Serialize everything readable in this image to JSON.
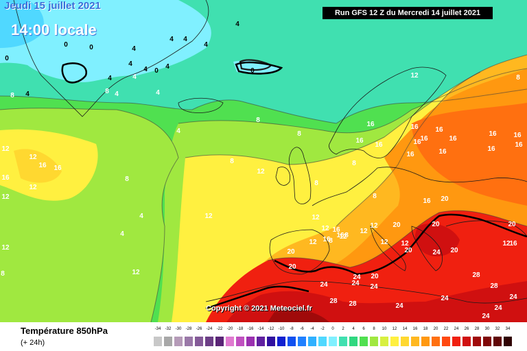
{
  "header": {
    "date": "Jeudi 15 juillet 2021",
    "local_time": "14:00 locale",
    "run": "Run GFS 12 Z du Mercredi 14 juillet 2021"
  },
  "copyright": "Copyright © 2021 Meteociel.fr",
  "legend": {
    "field": "Température 850hPa",
    "lead": "(+ 24h)",
    "scale": [
      {
        "value": "-34",
        "color": "#c8c8c8"
      },
      {
        "value": "-32",
        "color": "#a8a8a8"
      },
      {
        "value": "-30",
        "color": "#b59bb8"
      },
      {
        "value": "-28",
        "color": "#9a78a8"
      },
      {
        "value": "-26",
        "color": "#845a98"
      },
      {
        "value": "-24",
        "color": "#6c3e86"
      },
      {
        "value": "-22",
        "color": "#5a2476"
      },
      {
        "value": "-20",
        "color": "#e07ad0"
      },
      {
        "value": "-18",
        "color": "#c050c0"
      },
      {
        "value": "-16",
        "color": "#9a30b0"
      },
      {
        "value": "-14",
        "color": "#6020a0"
      },
      {
        "value": "-12",
        "color": "#3010a0"
      },
      {
        "value": "-10",
        "color": "#1020d0"
      },
      {
        "value": "-8",
        "color": "#1050f0"
      },
      {
        "value": "-6",
        "color": "#2080ff"
      },
      {
        "value": "-4",
        "color": "#30b0ff"
      },
      {
        "value": "-2",
        "color": "#50d8ff"
      },
      {
        "value": "0",
        "color": "#80f0ff"
      },
      {
        "value": "2",
        "color": "#40e0b0"
      },
      {
        "value": "4",
        "color": "#30d880"
      },
      {
        "value": "6",
        "color": "#50e050"
      },
      {
        "value": "8",
        "color": "#a0e840"
      },
      {
        "value": "10",
        "color": "#d8f040"
      },
      {
        "value": "12",
        "color": "#fff040"
      },
      {
        "value": "14",
        "color": "#ffd830"
      },
      {
        "value": "16",
        "color": "#ffb820"
      },
      {
        "value": "18",
        "color": "#ff9810"
      },
      {
        "value": "20",
        "color": "#ff7010"
      },
      {
        "value": "22",
        "color": "#ff4810"
      },
      {
        "value": "24",
        "color": "#f02010"
      },
      {
        "value": "26",
        "color": "#d01010"
      },
      {
        "value": "28",
        "color": "#a00a0a"
      },
      {
        "value": "30",
        "color": "#800808"
      },
      {
        "value": "32",
        "color": "#600606"
      },
      {
        "value": "34",
        "color": "#300303"
      }
    ]
  },
  "map_labels": [
    {
      "text": "4",
      "color": "#000000"
    },
    {
      "text": "0",
      "color": "#000000"
    },
    {
      "text": "0",
      "color": "#000000"
    },
    {
      "text": "0",
      "color": "#000000"
    },
    {
      "text": "0",
      "color": "#000000"
    },
    {
      "text": "4",
      "color": "#000000"
    },
    {
      "text": "4",
      "color": "#000000"
    },
    {
      "text": "4",
      "color": "#000000"
    },
    {
      "text": "4",
      "color": "#000000"
    },
    {
      "text": "0",
      "color": "#000000"
    },
    {
      "text": "4",
      "color": "#000000"
    },
    {
      "text": "4",
      "color": "#000000"
    },
    {
      "text": "8",
      "color": "#ffffff"
    },
    {
      "text": "8",
      "color": "#ffffff"
    },
    {
      "text": "4",
      "color": "#ffffff"
    },
    {
      "text": "4",
      "color": "#ffffff"
    },
    {
      "text": "4",
      "color": "#ffffff"
    },
    {
      "text": "4",
      "color": "#ffffff"
    },
    {
      "text": "8",
      "color": "#ffffff"
    },
    {
      "text": "12",
      "color": "#ffffff"
    },
    {
      "text": "12",
      "color": "#ffffff"
    },
    {
      "text": "16",
      "color": "#ffffff"
    },
    {
      "text": "16",
      "color": "#ffffff"
    },
    {
      "text": "16",
      "color": "#ffffff"
    },
    {
      "text": "12",
      "color": "#ffffff"
    },
    {
      "text": "12",
      "color": "#ffffff"
    },
    {
      "text": "8",
      "color": "#ffffff"
    },
    {
      "text": "8",
      "color": "#ffffff"
    },
    {
      "text": "4",
      "color": "#ffffff"
    },
    {
      "text": "4",
      "color": "#ffffff"
    },
    {
      "text": "12",
      "color": "#ffffff"
    },
    {
      "text": "12",
      "color": "#ffffff"
    },
    {
      "text": "12",
      "color": "#ffffff"
    },
    {
      "text": "12",
      "color": "#ffffff"
    },
    {
      "text": "8",
      "color": "#ffffff"
    },
    {
      "text": "8",
      "color": "#ffffff"
    },
    {
      "text": "12",
      "color": "#ffffff"
    },
    {
      "text": "12",
      "color": "#ffffff"
    },
    {
      "text": "12",
      "color": "#ffffff"
    },
    {
      "text": "12",
      "color": "#ffffff"
    },
    {
      "text": "8",
      "color": "#ffffff"
    },
    {
      "text": "8",
      "color": "#ffffff"
    },
    {
      "text": "8",
      "color": "#ffffff"
    },
    {
      "text": "8",
      "color": "#ffffff"
    },
    {
      "text": "12",
      "color": "#ffffff"
    },
    {
      "text": "16",
      "color": "#ffffff"
    },
    {
      "text": "16",
      "color": "#ffffff"
    },
    {
      "text": "16",
      "color": "#ffffff"
    },
    {
      "text": "12",
      "color": "#ffffff"
    },
    {
      "text": "12",
      "color": "#ffffff"
    },
    {
      "text": "12",
      "color": "#ffffff"
    },
    {
      "text": "8",
      "color": "#ffffff"
    },
    {
      "text": "16",
      "color": "#ffffff"
    },
    {
      "text": "16",
      "color": "#ffffff"
    },
    {
      "text": "16",
      "color": "#ffffff"
    },
    {
      "text": "16",
      "color": "#ffffff"
    },
    {
      "text": "16",
      "color": "#ffffff"
    },
    {
      "text": "16",
      "color": "#ffffff"
    },
    {
      "text": "16",
      "color": "#ffffff"
    },
    {
      "text": "16",
      "color": "#ffffff"
    },
    {
      "text": "16",
      "color": "#ffffff"
    },
    {
      "text": "16",
      "color": "#ffffff"
    },
    {
      "text": "16",
      "color": "#ffffff"
    },
    {
      "text": "16",
      "color": "#ffffff"
    },
    {
      "text": "16",
      "color": "#ffffff"
    },
    {
      "text": "16",
      "color": "#ffffff"
    },
    {
      "text": "16",
      "color": "#ffffff"
    },
    {
      "text": "20",
      "color": "#ffffff"
    },
    {
      "text": "20",
      "color": "#ffffff"
    },
    {
      "text": "20",
      "color": "#ffffff"
    },
    {
      "text": "20",
      "color": "#ffffff"
    },
    {
      "text": "20",
      "color": "#ffffff"
    },
    {
      "text": "20",
      "color": "#ffffff"
    },
    {
      "text": "20",
      "color": "#ffffff"
    },
    {
      "text": "20",
      "color": "#ffffff"
    },
    {
      "text": "20",
      "color": "#ffffff"
    },
    {
      "text": "24",
      "color": "#ffffff"
    },
    {
      "text": "24",
      "color": "#ffffff"
    },
    {
      "text": "24",
      "color": "#ffffff"
    },
    {
      "text": "24",
      "color": "#ffffff"
    },
    {
      "text": "24",
      "color": "#ffffff"
    },
    {
      "text": "24",
      "color": "#ffffff"
    },
    {
      "text": "24",
      "color": "#ffffff"
    },
    {
      "text": "24",
      "color": "#ffffff"
    },
    {
      "text": "24",
      "color": "#ffffff"
    },
    {
      "text": "24",
      "color": "#ffffff"
    },
    {
      "text": "28",
      "color": "#ffffff"
    },
    {
      "text": "28",
      "color": "#ffffff"
    },
    {
      "text": "28",
      "color": "#ffffff"
    },
    {
      "text": "28",
      "color": "#ffffff"
    },
    {
      "text": "16",
      "color": "#ffffff"
    },
    {
      "text": "12",
      "color": "#ffffff"
    },
    {
      "text": "12",
      "color": "#ffffff"
    },
    {
      "text": "8",
      "color": "#ffffff"
    },
    {
      "text": "4",
      "color": "#000000"
    },
    {
      "text": "4",
      "color": "#000000"
    },
    {
      "text": "4",
      "color": "#000000"
    }
  ]
}
